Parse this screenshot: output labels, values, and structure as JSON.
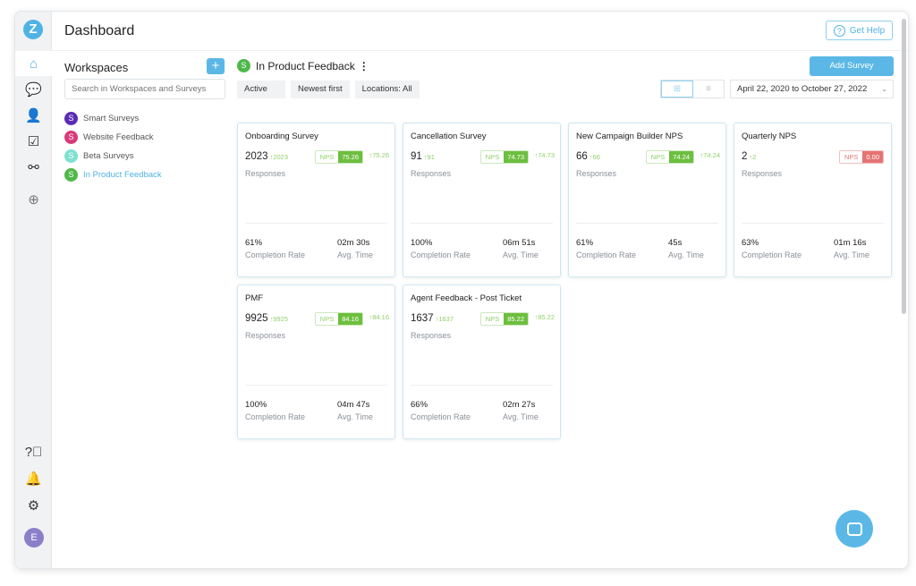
{
  "header": {
    "title": "Dashboard",
    "help_label": "Get Help"
  },
  "sidebar": {
    "logo": "Z",
    "avatar": "E",
    "icons": [
      "home-icon",
      "chat-icon",
      "user-icon",
      "calendar-check-icon",
      "workflow-icon",
      "add-icon",
      "help-icon",
      "bell-icon",
      "gear-icon"
    ]
  },
  "workspaces": {
    "title": "Workspaces",
    "add": "+",
    "search_placeholder": "Search in Workspaces and Surveys",
    "items": [
      {
        "letter": "S",
        "label": "Smart Surveys",
        "color": "#5b2bb5"
      },
      {
        "letter": "S",
        "label": "Website Feedback",
        "color": "#d93a7a"
      },
      {
        "letter": "S",
        "label": "Beta Surveys",
        "color": "#7ee0cf"
      },
      {
        "letter": "S",
        "label": "In Product Feedback",
        "color": "#4fb84a",
        "active": true
      }
    ]
  },
  "main": {
    "workspace_letter": "S",
    "workspace_name": "In Product Feedback",
    "add_survey": "Add Survey",
    "filters": [
      "Active",
      "Newest first",
      "Locations: All"
    ],
    "date_range": "April 22, 2020 to October 27, 2022",
    "labels": {
      "responses": "Responses",
      "nps": "NPS",
      "completion": "Completion Rate",
      "avg_time": "Avg. Time"
    },
    "cards": [
      {
        "name": "Onboarding Survey",
        "responses": "2023",
        "resp_delta": "↑2023",
        "nps": "75.26",
        "nps_delta": "↑75.26",
        "completion": "61%",
        "time": "02m 30s"
      },
      {
        "name": "Cancellation Survey",
        "responses": "91",
        "resp_delta": "↑91",
        "nps": "74.73",
        "nps_delta": "↑74.73",
        "completion": "100%",
        "time": "06m 51s"
      },
      {
        "name": "New Campaign Builder NPS",
        "responses": "66",
        "resp_delta": "↑66",
        "nps": "74.24",
        "nps_delta": "↑74.24",
        "completion": "61%",
        "time": "45s"
      },
      {
        "name": "Quarterly NPS",
        "responses": "2",
        "resp_delta": "↑2",
        "nps": "0.00",
        "nps_delta": "",
        "completion": "63%",
        "time": "01m 16s",
        "negative": true
      },
      {
        "name": "PMF",
        "responses": "9925",
        "resp_delta": "↑9925",
        "nps": "84.16",
        "nps_delta": "↑84.16",
        "completion": "100%",
        "time": "04m 47s"
      },
      {
        "name": "Agent Feedback - Post Ticket",
        "responses": "1637",
        "resp_delta": "↑1637",
        "nps": "85.22",
        "nps_delta": "↑85.22",
        "completion": "66%",
        "time": "02m 27s"
      }
    ]
  }
}
